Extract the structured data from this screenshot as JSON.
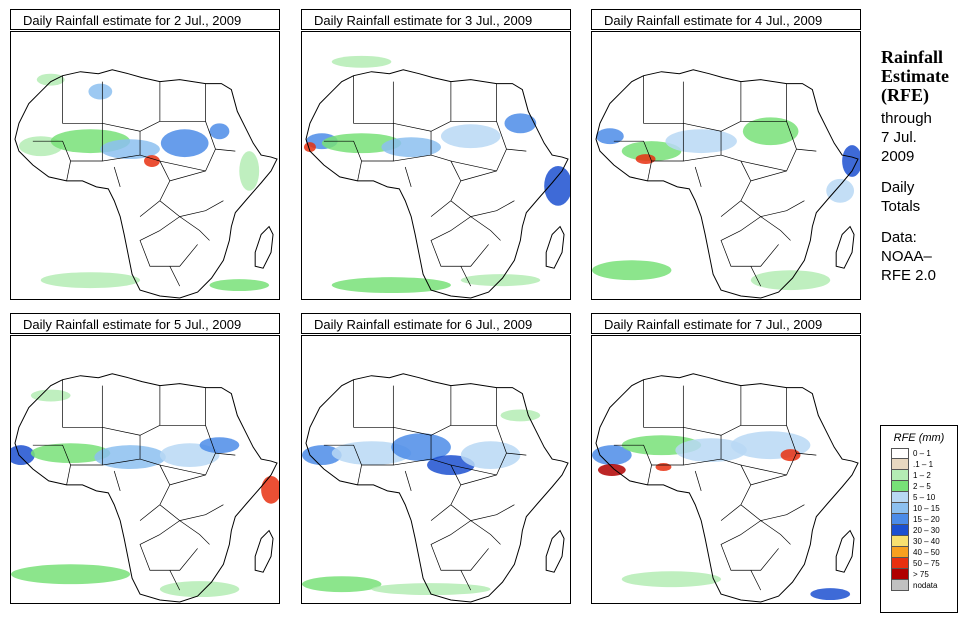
{
  "panels": [
    {
      "title": "Daily Rainfall estimate for  2 Jul., 2009",
      "day": 2
    },
    {
      "title": "Daily Rainfall estimate for  3 Jul., 2009",
      "day": 3
    },
    {
      "title": "Daily Rainfall estimate for  4 Jul., 2009",
      "day": 4
    },
    {
      "title": "Daily Rainfall estimate for  5 Jul., 2009",
      "day": 5
    },
    {
      "title": "Daily Rainfall estimate for  6 Jul., 2009",
      "day": 6
    },
    {
      "title": "Daily Rainfall estimate for  7 Jul., 2009",
      "day": 7
    }
  ],
  "sidebar": {
    "heading_1": "Rainfall",
    "heading_2": "Estimate",
    "heading_3": "(RFE)",
    "through_1": "through",
    "through_2": "7 Jul.",
    "through_3": "2009",
    "daily_1": "Daily",
    "daily_2": "Totals",
    "data_1": "Data:",
    "data_2": "NOAA–",
    "data_3": "RFE 2.0"
  },
  "legend": {
    "title": "RFE (mm)",
    "items": [
      {
        "label": "0 – 1",
        "color": "#ffffff"
      },
      {
        "label": ".1 – 1",
        "color": "#e8d8c0"
      },
      {
        "label": "1 – 2",
        "color": "#b4ecb4"
      },
      {
        "label": "2 – 5",
        "color": "#78e078"
      },
      {
        "label": "5 – 10",
        "color": "#b8d8f4"
      },
      {
        "label": "10 – 15",
        "color": "#8cc0f0"
      },
      {
        "label": "15 – 20",
        "color": "#4c8ce8"
      },
      {
        "label": "20 – 30",
        "color": "#1c50d0"
      },
      {
        "label": "30 – 40",
        "color": "#f8e070"
      },
      {
        "label": "40 – 50",
        "color": "#f8a020"
      },
      {
        "label": "50 – 75",
        "color": "#e83010"
      },
      {
        "label": "> 75",
        "color": "#b00000"
      },
      {
        "label": "nodata",
        "color": "#c0c0c0"
      }
    ]
  }
}
